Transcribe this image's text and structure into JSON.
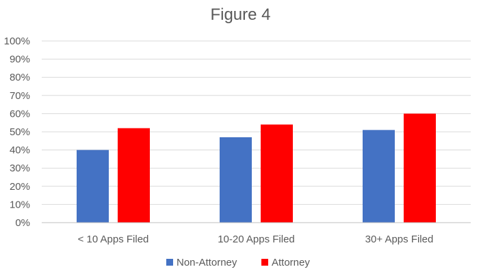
{
  "chart_data": {
    "type": "bar",
    "title": "Figure 4",
    "categories": [
      "< 10 Apps Filed",
      "10-20 Apps Filed",
      "30+ Apps Filed"
    ],
    "series": [
      {
        "name": "Non-Attorney",
        "values": [
          0.4,
          0.47,
          0.51
        ],
        "color": "#4472C4"
      },
      {
        "name": "Attorney",
        "values": [
          0.52,
          0.54,
          0.6
        ],
        "color": "#FF0000"
      }
    ],
    "y_ticks": [
      "0%",
      "10%",
      "20%",
      "30%",
      "40%",
      "50%",
      "60%",
      "70%",
      "80%",
      "90%",
      "100%"
    ],
    "ylim": [
      0,
      1
    ],
    "grid": true,
    "legend_position": "bottom",
    "colors": {
      "grid": "#D9D9D9",
      "axis": "#BFBFBF",
      "text": "#595959"
    }
  }
}
